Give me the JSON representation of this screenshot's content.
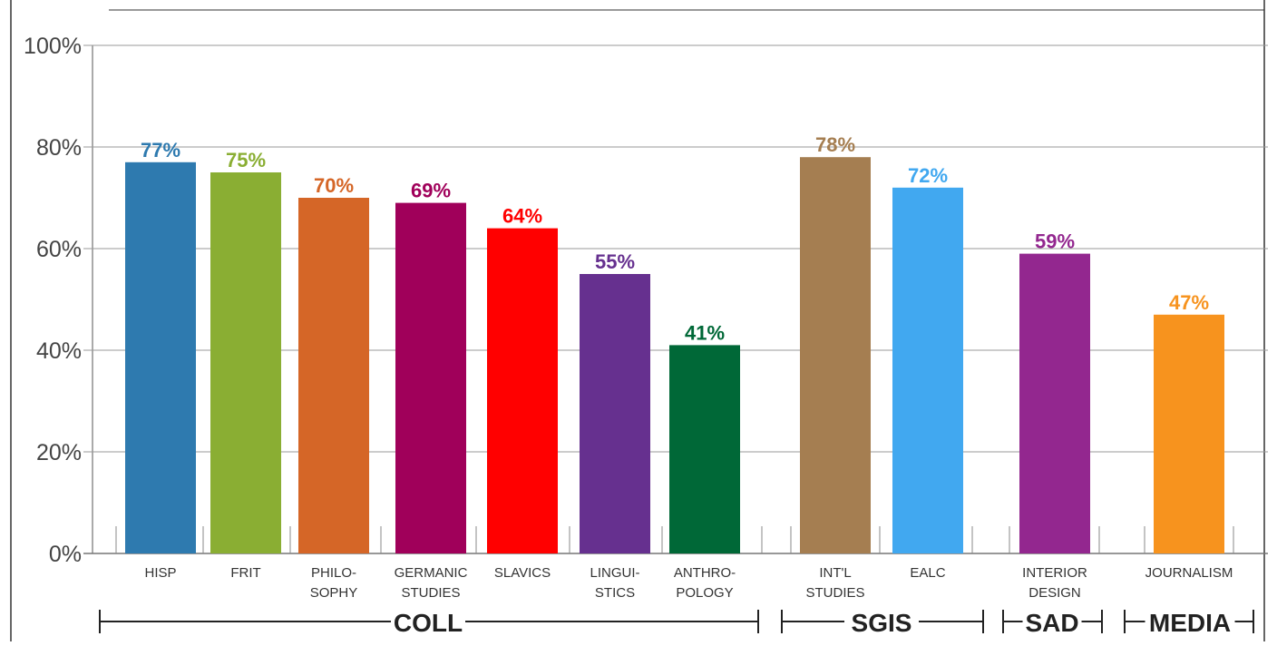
{
  "chart_data": {
    "type": "bar",
    "title": "",
    "xlabel": "",
    "ylabel": "",
    "ylim": [
      0,
      100
    ],
    "yticks": [
      "0%",
      "20%",
      "40%",
      "60%",
      "80%",
      "100%"
    ],
    "ytick_values": [
      0,
      20,
      40,
      60,
      80,
      100
    ],
    "grid": true,
    "categories": [
      {
        "label": [
          "HISP"
        ],
        "value": 77,
        "value_label": "77%",
        "color": "#2e7aaf",
        "group": "COLL"
      },
      {
        "label": [
          "FRIT"
        ],
        "value": 75,
        "value_label": "75%",
        "color": "#8aae33",
        "group": "COLL"
      },
      {
        "label": [
          "PHILO-",
          "SOPHY"
        ],
        "value": 70,
        "value_label": "70%",
        "color": "#d56627",
        "group": "COLL"
      },
      {
        "label": [
          "GERMANIC",
          "STUDIES"
        ],
        "value": 69,
        "value_label": "69%",
        "color": "#a0005a",
        "group": "COLL"
      },
      {
        "label": [
          "SLAVICS"
        ],
        "value": 64,
        "value_label": "64%",
        "color": "#ff0000",
        "group": "COLL"
      },
      {
        "label": [
          "LINGUI-",
          "STICS"
        ],
        "value": 55,
        "value_label": "55%",
        "color": "#66308f",
        "group": "COLL"
      },
      {
        "label": [
          "ANTHRO-",
          "POLOGY"
        ],
        "value": 41,
        "value_label": "41%",
        "color": "#006837",
        "group": "COLL"
      },
      {
        "label": [
          "INT'L",
          "STUDIES"
        ],
        "value": 78,
        "value_label": "78%",
        "color": "#a57e51",
        "group": "SGIS"
      },
      {
        "label": [
          "EALC"
        ],
        "value": 72,
        "value_label": "72%",
        "color": "#41a8f0",
        "group": "SGIS"
      },
      {
        "label": [
          "INTERIOR",
          "DESIGN"
        ],
        "value": 59,
        "value_label": "59%",
        "color": "#93278f",
        "group": "SAD"
      },
      {
        "label": [
          "JOURNALISM"
        ],
        "value": 47,
        "value_label": "47%",
        "color": "#f7931e",
        "group": "MEDIA"
      }
    ],
    "groups": [
      "COLL",
      "SGIS",
      "SAD",
      "MEDIA"
    ]
  }
}
